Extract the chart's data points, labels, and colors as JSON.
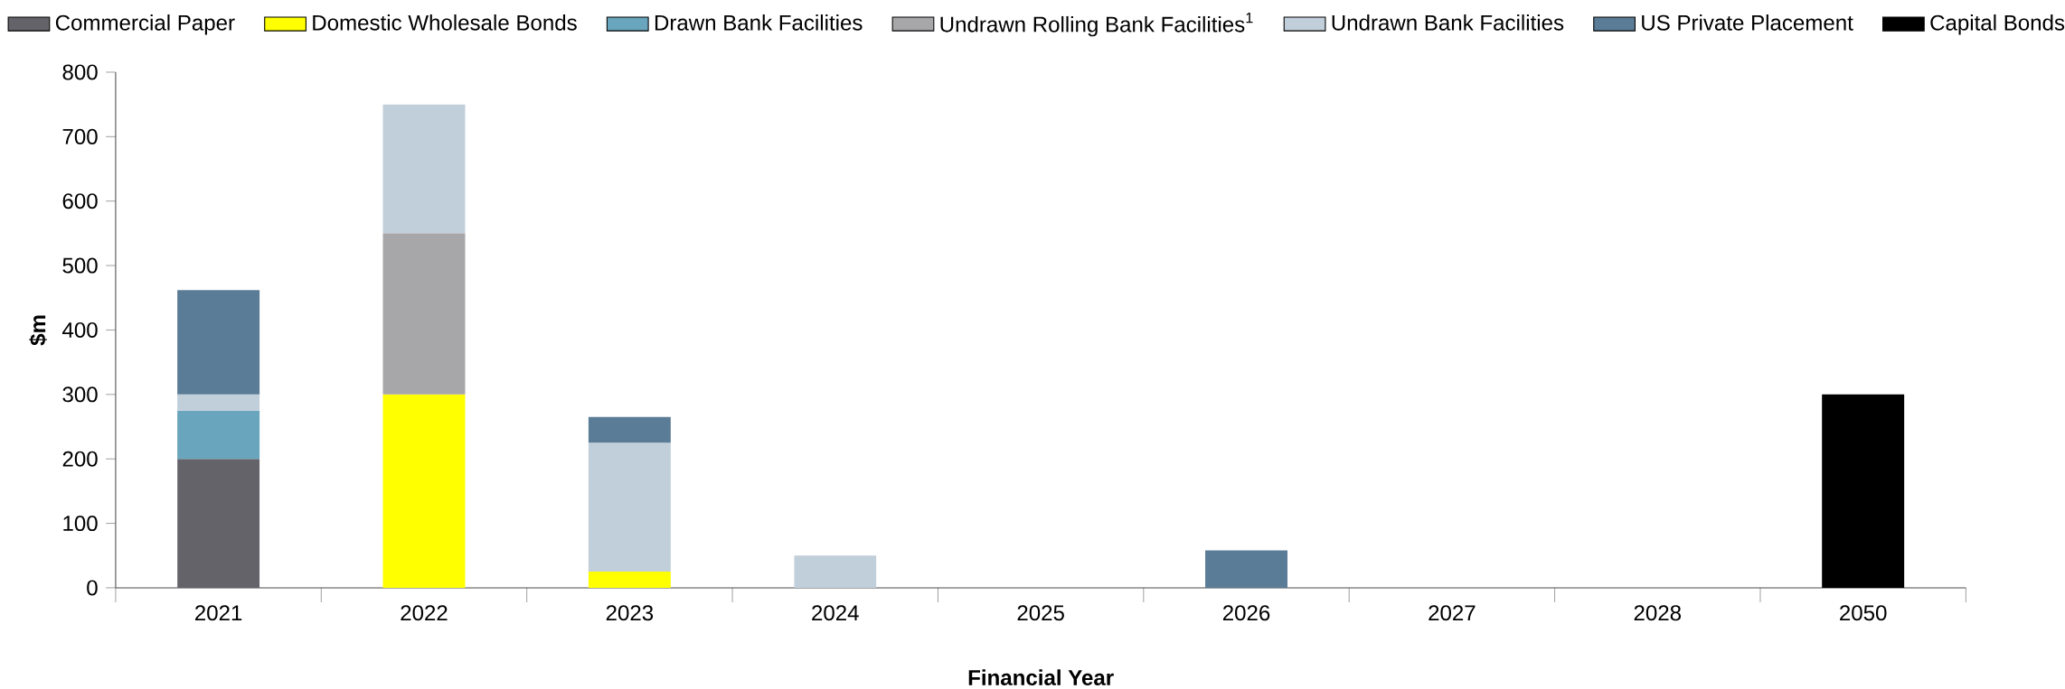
{
  "chart_data": {
    "type": "bar",
    "stacked": true,
    "xlabel": "Financial Year",
    "ylabel": "$m",
    "categories": [
      "2021",
      "2022",
      "2023",
      "2024",
      "2025",
      "2026",
      "2027",
      "2028",
      "2050"
    ],
    "series": [
      {
        "name": "Commercial Paper",
        "color": "#636369",
        "values": [
          200,
          null,
          null,
          null,
          null,
          null,
          null,
          null,
          null
        ]
      },
      {
        "name": "Domestic Wholesale Bonds",
        "color": "#ffff00",
        "values": [
          null,
          300,
          25,
          null,
          null,
          null,
          null,
          null,
          null
        ]
      },
      {
        "name": "Drawn Bank Facilities",
        "color": "#69a5bc",
        "values": [
          75,
          null,
          null,
          null,
          null,
          null,
          null,
          null,
          null
        ]
      },
      {
        "name": "Undrawn Rolling Bank Facilities$^{1}$",
        "color": "#a7a6a9",
        "values": [
          null,
          250,
          null,
          null,
          null,
          null,
          null,
          null,
          null
        ]
      },
      {
        "name": "Undrawn Bank Facilities",
        "color": "#c1cfda",
        "values": [
          25,
          200,
          200,
          50,
          null,
          null,
          null,
          null,
          null
        ]
      },
      {
        "name": "US Private Placement",
        "color": "#5b7c96",
        "values": [
          162,
          null,
          40,
          null,
          null,
          58,
          null,
          null,
          null
        ]
      },
      {
        "name": "Capital Bonds",
        "color": "#000000",
        "values": [
          null,
          null,
          null,
          null,
          null,
          null,
          null,
          null,
          300
        ]
      }
    ],
    "ylim": [
      0,
      800
    ],
    "yticks": [
      0,
      100,
      200,
      300,
      400,
      500,
      600,
      700,
      800
    ],
    "grid": false,
    "legend": "top"
  }
}
